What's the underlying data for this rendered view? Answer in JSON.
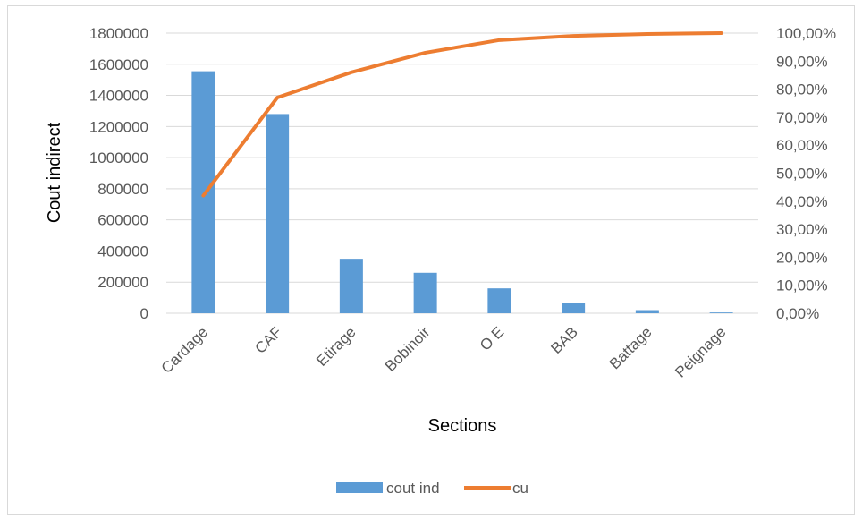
{
  "chart_data": {
    "type": "bar",
    "title": "",
    "xlabel": "Sections",
    "ylabel": "Cout indirect",
    "categories": [
      "Cardage",
      "CAF",
      "Etirage",
      "Bobinoir",
      "O E",
      "BAB",
      "Battage",
      "Peignage"
    ],
    "ylim": [
      0,
      1800000
    ],
    "y_ticks": [
      "0",
      "200000",
      "400000",
      "600000",
      "800000",
      "1000000",
      "1200000",
      "1400000",
      "1600000",
      "1800000"
    ],
    "y2lim": [
      0,
      1
    ],
    "y2_ticks": [
      "0,00%",
      "10,00%",
      "20,00%",
      "30,00%",
      "40,00%",
      "50,00%",
      "60,00%",
      "70,00%",
      "80,00%",
      "90,00%",
      "100,00%"
    ],
    "grid": true,
    "legend_position": "bottom",
    "series": [
      {
        "name": "cout ind",
        "type": "bar",
        "axis": "left",
        "color": "#5b9bd5",
        "values": [
          1555000,
          1280000,
          350000,
          260000,
          160000,
          65000,
          20000,
          5000
        ]
      },
      {
        "name": "cu",
        "type": "line",
        "axis": "right",
        "color": "#ed7d31",
        "values": [
          0.42,
          0.77,
          0.86,
          0.93,
          0.975,
          0.99,
          0.997,
          1.0
        ]
      }
    ]
  }
}
